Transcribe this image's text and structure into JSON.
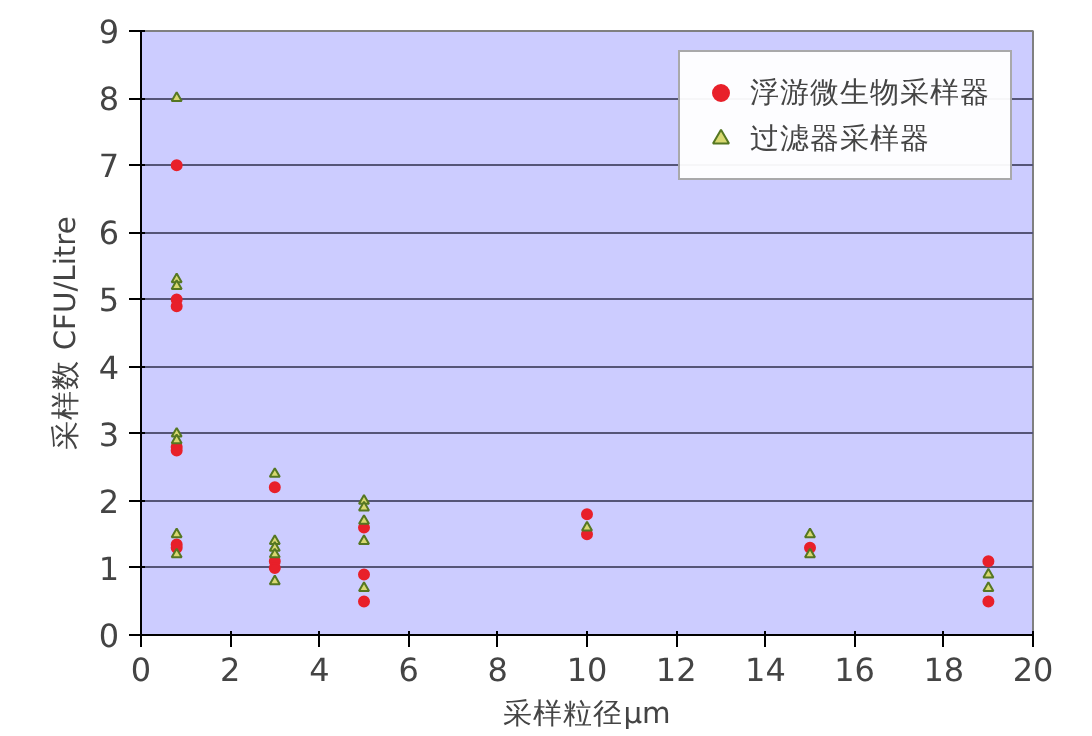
{
  "chart_data": {
    "type": "scatter",
    "xlabel": "采样粒径μm",
    "ylabel": "采样数 CFU/Litre",
    "xlim": [
      0,
      20
    ],
    "xticks": [
      0,
      2,
      4,
      6,
      8,
      10,
      12,
      14,
      16,
      18,
      20
    ],
    "ylim": [
      0,
      9
    ],
    "yticks": [
      0,
      1,
      2,
      3,
      4,
      5,
      6,
      7,
      8,
      9
    ],
    "grid": "y",
    "legend": "top right",
    "series": [
      {
        "name": "浮游微生物采样器",
        "color": "#e8202a",
        "marker": "circle",
        "x": [
          0.8,
          0.8,
          0.8,
          0.8,
          0.8,
          0.8,
          0.8,
          3,
          3,
          3,
          5,
          5,
          5,
          10,
          10,
          15,
          19,
          19
        ],
        "values": [
          7.0,
          5.0,
          4.9,
          2.8,
          2.75,
          1.35,
          1.3,
          2.2,
          1.1,
          1.0,
          1.6,
          0.9,
          0.5,
          1.8,
          1.5,
          1.3,
          1.1,
          0.5
        ]
      },
      {
        "name": "过滤器采样器",
        "color": "#d8d870",
        "marker": "triangle",
        "x": [
          0.8,
          0.8,
          0.8,
          0.8,
          0.8,
          0.8,
          0.8,
          3,
          3,
          3,
          3,
          3,
          5,
          5,
          5,
          5,
          5,
          10,
          15,
          15,
          19,
          19
        ],
        "values": [
          8.0,
          5.3,
          5.2,
          3.0,
          2.9,
          1.5,
          1.2,
          2.4,
          1.4,
          1.3,
          1.2,
          0.8,
          2.0,
          1.9,
          1.7,
          1.4,
          0.7,
          1.6,
          1.5,
          1.2,
          0.9,
          0.7
        ]
      }
    ]
  }
}
